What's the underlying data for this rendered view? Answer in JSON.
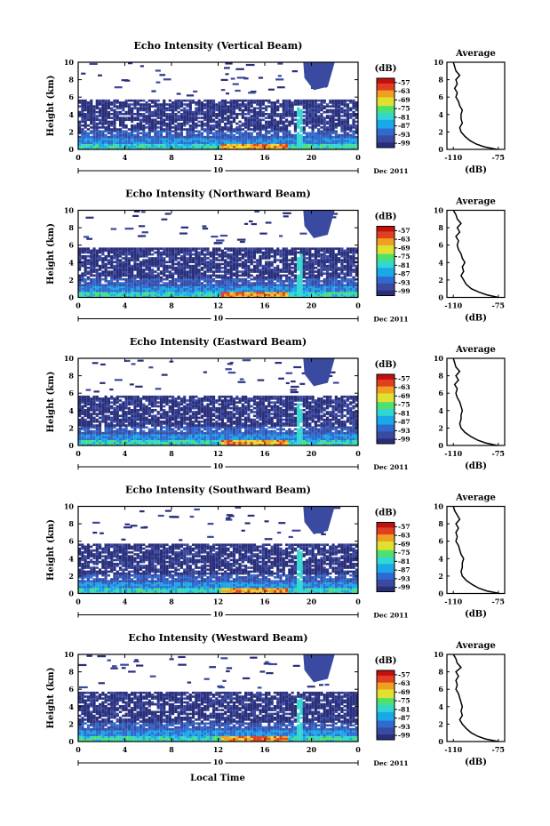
{
  "chart_data": [
    {
      "type": "heatmap",
      "title": "Echo Intensity (Vertical Beam)",
      "xlabel": "",
      "ylabel": "Height (km)",
      "x_ticks": [
        "0",
        "4",
        "8",
        "12",
        "16",
        "20",
        "0"
      ],
      "y_ticks": [
        "0",
        "2",
        "4",
        "6",
        "8",
        "10"
      ],
      "xlim": [
        0,
        24
      ],
      "ylim": [
        0,
        10
      ],
      "date_label": "10",
      "date_suffix": "Dec 2011",
      "colorbar": {
        "title": "(dB)",
        "ticks": [
          "-57",
          "-63",
          "-69",
          "-75",
          "-81",
          "-87",
          "-93",
          "-99"
        ],
        "range": [
          -102,
          -54
        ]
      },
      "average": {
        "title": "Average",
        "xlabel": "(dB)",
        "x_ticks": [
          "-110",
          "-75"
        ],
        "xlim": [
          -115,
          -70
        ],
        "y_ticks": [
          "0",
          "2",
          "4",
          "6",
          "8",
          "10"
        ],
        "height": [
          0,
          0.3,
          0.6,
          1,
          1.5,
          2,
          2.5,
          3,
          3.5,
          4,
          4.5,
          5,
          5.5,
          6,
          6.5,
          7,
          7.5,
          8,
          8.5,
          9,
          9.5,
          10
        ],
        "db": [
          -76,
          -86,
          -92,
          -97,
          -101,
          -104,
          -105,
          -103,
          -104,
          -104,
          -103,
          -105,
          -106,
          -108,
          -107,
          -109,
          -107,
          -108,
          -105,
          -108,
          -109,
          -110
        ]
      }
    },
    {
      "type": "heatmap",
      "title": "Echo Intensity (Northward Beam)",
      "xlabel": "",
      "ylabel": "Height (km)",
      "x_ticks": [
        "0",
        "4",
        "8",
        "12",
        "16",
        "20",
        "0"
      ],
      "y_ticks": [
        "0",
        "2",
        "4",
        "6",
        "8",
        "10"
      ],
      "xlim": [
        0,
        24
      ],
      "ylim": [
        0,
        10
      ],
      "date_label": "10",
      "date_suffix": "Dec 2011",
      "colorbar": {
        "title": "(dB)",
        "ticks": [
          "-57",
          "-63",
          "-69",
          "-75",
          "-81",
          "-87",
          "-93",
          "-99"
        ],
        "range": [
          -102,
          -54
        ]
      },
      "average": {
        "title": "Average",
        "xlabel": "(dB)",
        "x_ticks": [
          "-110",
          "-75"
        ],
        "xlim": [
          -115,
          -70
        ],
        "y_ticks": [
          "0",
          "2",
          "4",
          "6",
          "8",
          "10"
        ],
        "height": [
          0,
          0.3,
          0.6,
          1,
          1.5,
          2,
          2.5,
          3,
          3.5,
          4,
          4.5,
          5,
          5.5,
          6,
          6.5,
          7,
          7.5,
          8,
          8.5,
          9,
          9.5,
          10
        ],
        "db": [
          -75,
          -84,
          -90,
          -96,
          -100,
          -102,
          -104,
          -102,
          -103,
          -101,
          -103,
          -104,
          -106,
          -107,
          -106,
          -108,
          -105,
          -107,
          -104,
          -107,
          -108,
          -110
        ]
      }
    },
    {
      "type": "heatmap",
      "title": "Echo Intensity (Eastward Beam)",
      "xlabel": "",
      "ylabel": "Height (km)",
      "x_ticks": [
        "0",
        "4",
        "8",
        "12",
        "16",
        "20",
        "0"
      ],
      "y_ticks": [
        "0",
        "2",
        "4",
        "6",
        "8",
        "10"
      ],
      "xlim": [
        0,
        24
      ],
      "ylim": [
        0,
        10
      ],
      "date_label": "10",
      "date_suffix": "Dec 2011",
      "colorbar": {
        "title": "(dB)",
        "ticks": [
          "-57",
          "-63",
          "-69",
          "-75",
          "-81",
          "-87",
          "-93",
          "-99"
        ],
        "range": [
          -102,
          -54
        ]
      },
      "average": {
        "title": "Average",
        "xlabel": "(dB)",
        "x_ticks": [
          "-110",
          "-75"
        ],
        "xlim": [
          -115,
          -70
        ],
        "y_ticks": [
          "0",
          "2",
          "4",
          "6",
          "8",
          "10"
        ],
        "height": [
          0,
          0.3,
          0.6,
          1,
          1.5,
          2,
          2.5,
          3,
          3.5,
          4,
          4.5,
          5,
          5.5,
          6,
          6.5,
          7,
          7.5,
          8,
          8.5,
          9,
          9.5,
          10
        ],
        "db": [
          -76,
          -85,
          -91,
          -96,
          -101,
          -104,
          -105,
          -104,
          -104,
          -103,
          -104,
          -105,
          -107,
          -108,
          -107,
          -109,
          -106,
          -108,
          -105,
          -108,
          -109,
          -110
        ]
      }
    },
    {
      "type": "heatmap",
      "title": "Echo Intensity (Southward Beam)",
      "xlabel": "",
      "ylabel": "Height (km)",
      "x_ticks": [
        "0",
        "4",
        "8",
        "12",
        "16",
        "20",
        "0"
      ],
      "y_ticks": [
        "0",
        "2",
        "4",
        "6",
        "8",
        "10"
      ],
      "xlim": [
        0,
        24
      ],
      "ylim": [
        0,
        10
      ],
      "date_label": "10",
      "date_suffix": "Dec 2011",
      "colorbar": {
        "title": "(dB)",
        "ticks": [
          "-57",
          "-63",
          "-69",
          "-75",
          "-81",
          "-87",
          "-93",
          "-99"
        ],
        "range": [
          -102,
          -54
        ]
      },
      "average": {
        "title": "Average",
        "xlabel": "(dB)",
        "x_ticks": [
          "-110",
          "-75"
        ],
        "xlim": [
          -115,
          -70
        ],
        "y_ticks": [
          "0",
          "2",
          "4",
          "6",
          "8",
          "10"
        ],
        "height": [
          0,
          0.3,
          0.6,
          1,
          1.5,
          2,
          2.5,
          3,
          3.5,
          4,
          4.5,
          5,
          5.5,
          6,
          6.5,
          7,
          7.5,
          8,
          8.5,
          9,
          9.5,
          10
        ],
        "db": [
          -74,
          -84,
          -90,
          -95,
          -100,
          -103,
          -104,
          -103,
          -103,
          -102,
          -104,
          -105,
          -106,
          -108,
          -107,
          -108,
          -106,
          -108,
          -105,
          -107,
          -109,
          -110
        ]
      }
    },
    {
      "type": "heatmap",
      "title": "Echo Intensity (Westward Beam)",
      "xlabel": "",
      "ylabel": "Height (km)",
      "x_ticks": [
        "0",
        "4",
        "8",
        "12",
        "16",
        "20",
        "0"
      ],
      "y_ticks": [
        "0",
        "2",
        "4",
        "6",
        "8",
        "10"
      ],
      "xlim": [
        0,
        24
      ],
      "ylim": [
        0,
        10
      ],
      "date_label": "10",
      "date_suffix": "Dec 2011",
      "colorbar": {
        "title": "(dB)",
        "ticks": [
          "-57",
          "-63",
          "-69",
          "-75",
          "-81",
          "-87",
          "-93",
          "-99"
        ],
        "range": [
          -102,
          -54
        ]
      },
      "average": {
        "title": "Average",
        "xlabel": "(dB)",
        "x_ticks": [
          "-110",
          "-75"
        ],
        "xlim": [
          -115,
          -70
        ],
        "y_ticks": [
          "0",
          "2",
          "4",
          "6",
          "8",
          "10"
        ],
        "height": [
          0,
          0.3,
          0.6,
          1,
          1.5,
          2,
          2.5,
          3,
          3.5,
          4,
          4.5,
          5,
          5.5,
          6,
          6.5,
          7,
          7.5,
          8,
          8.5,
          9,
          9.5,
          10
        ],
        "db": [
          -75,
          -85,
          -91,
          -96,
          -100,
          -103,
          -105,
          -103,
          -104,
          -103,
          -104,
          -105,
          -106,
          -108,
          -107,
          -108,
          -106,
          -108,
          -104,
          -107,
          -108,
          -110
        ]
      }
    }
  ],
  "figure": {
    "xlabel": "Local Time"
  },
  "colormap": [
    "#2a2f7a",
    "#3a4aa0",
    "#2f6ad0",
    "#1aa8e8",
    "#30d8d0",
    "#50e070",
    "#e0e030",
    "#f0a020",
    "#e04020",
    "#c01010"
  ]
}
